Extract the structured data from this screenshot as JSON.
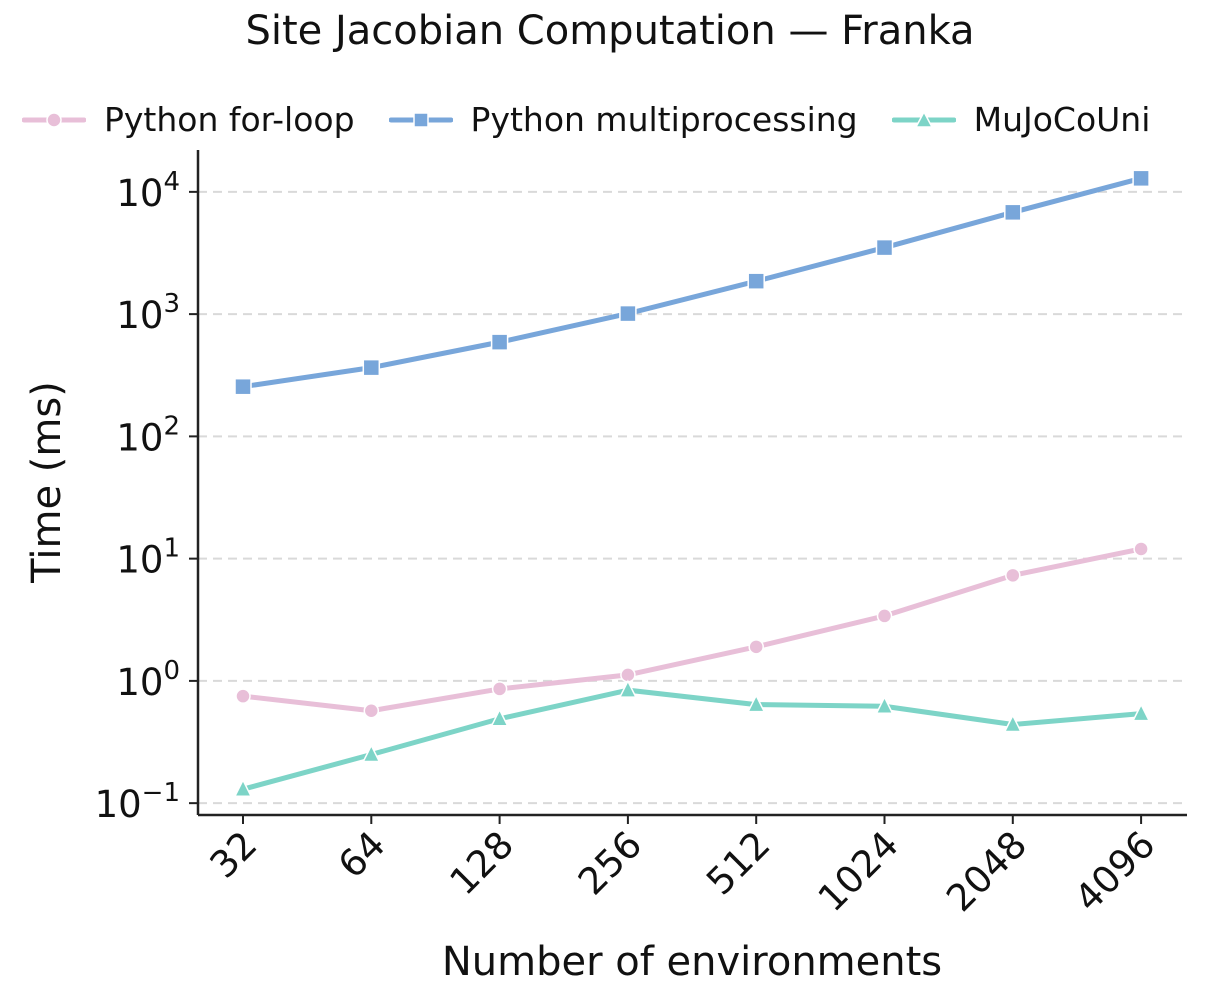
{
  "chart_data": {
    "type": "line",
    "title": "Site Jacobian Computation — Franka",
    "xlabel": "Number of environments",
    "ylabel": "Time (ms)",
    "yscale": "log",
    "ylim": [
      0.08,
      22000
    ],
    "grid": "y dashed",
    "legend_position": "top",
    "categories": [
      "32",
      "64",
      "128",
      "256",
      "512",
      "1024",
      "2048",
      "4096"
    ],
    "yticks": [
      {
        "base": "10",
        "exp": "4",
        "value": 10000
      },
      {
        "base": "10",
        "exp": "3",
        "value": 1000
      },
      {
        "base": "10",
        "exp": "2",
        "value": 100
      },
      {
        "base": "10",
        "exp": "1",
        "value": 10
      },
      {
        "base": "10",
        "exp": "0",
        "value": 1
      },
      {
        "base": "10",
        "exp": "−1",
        "value": 0.1
      }
    ],
    "series": [
      {
        "name": "Python for-loop",
        "color": "#e8bfd8",
        "marker": "circle",
        "values": [
          0.75,
          0.57,
          0.86,
          1.12,
          1.9,
          3.4,
          7.3,
          12.0
        ]
      },
      {
        "name": "Python multiprocessing",
        "color": "#78a6da",
        "marker": "square",
        "values": [
          255,
          365,
          590,
          1010,
          1860,
          3500,
          6800,
          12900
        ]
      },
      {
        "name": "MuJoCoUni",
        "color": "#7dd4c7",
        "marker": "triangle",
        "values": [
          0.13,
          0.25,
          0.49,
          0.84,
          0.64,
          0.62,
          0.44,
          0.54
        ]
      }
    ]
  }
}
